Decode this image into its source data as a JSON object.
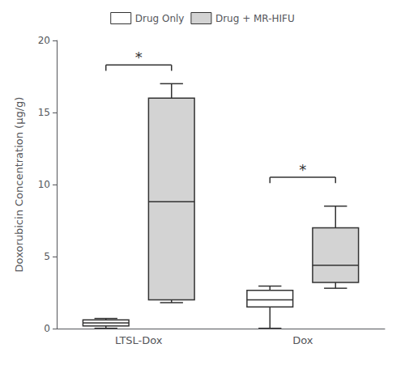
{
  "chart_data": {
    "type": "box",
    "ylabel": "Doxorubicin Concentration (µg/g)",
    "categories": [
      "LTSL-Dox",
      "Dox"
    ],
    "series": [
      {
        "name": "Drug Only",
        "color": "white",
        "values": [
          [
            0.02,
            0.18,
            0.4,
            0.6,
            0.7
          ],
          [
            0.02,
            1.5,
            2.0,
            2.65,
            2.95
          ]
        ]
      },
      {
        "name": "Drug + MR-HIFU",
        "color": "#d3d3d3",
        "values": [
          [
            1.8,
            2.0,
            8.8,
            16.0,
            17.0
          ],
          [
            2.8,
            3.2,
            4.4,
            7.0,
            8.5
          ]
        ]
      }
    ],
    "annotations": [
      {
        "text": "*",
        "category": "LTSL-Dox",
        "y": 18.3,
        "drop": 0.4
      },
      {
        "text": "*",
        "category": "Dox",
        "y": 10.5,
        "drop": 0.4
      }
    ],
    "ylim": [
      0,
      20
    ],
    "yticks": [
      0,
      5,
      10,
      15,
      20
    ],
    "grid": false,
    "legend": "top"
  }
}
